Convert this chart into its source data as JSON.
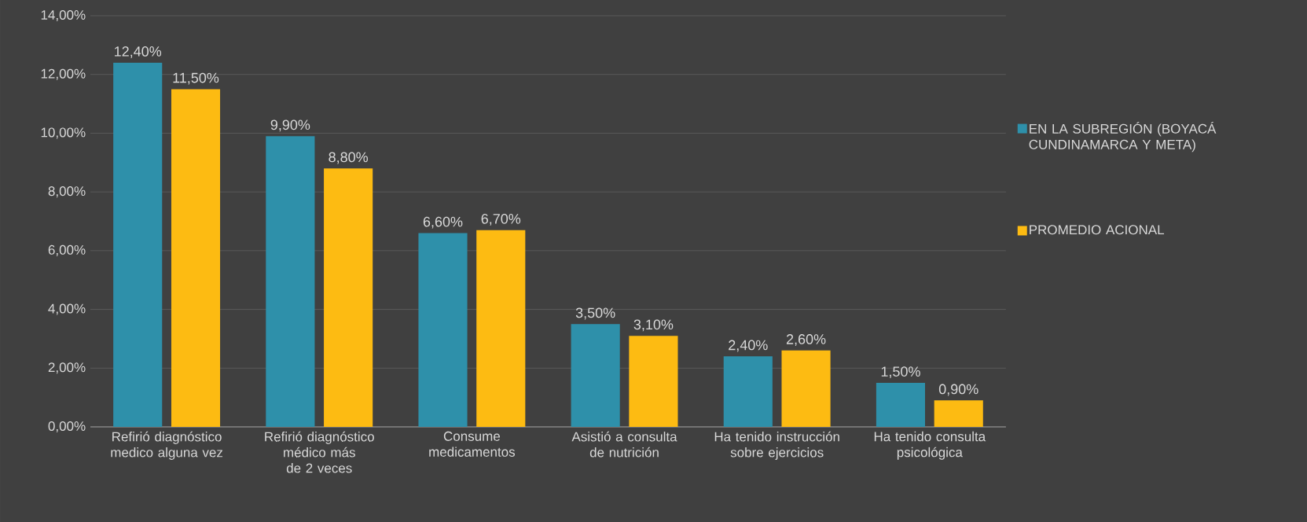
{
  "chart_data": {
    "type": "bar",
    "categories": [
      "Refirió diagnóstico medico alguna vez",
      "Refirió diagnóstico médico más de 2 veces",
      "Consume medicamentos",
      "Asistió a consulta de nutrición",
      "Ha tenido instrucción sobre ejercicios",
      "Ha tenido consulta psicológica"
    ],
    "series": [
      {
        "name": "EN LA SUBREGIÓN (BOYACÁ CUNDINAMARCA Y META)",
        "color": "#2e90aa",
        "values": [
          12.4,
          9.9,
          6.6,
          3.5,
          2.4,
          1.5
        ],
        "value_labels": [
          "12,40%",
          "9,90%",
          "6,60%",
          "3,50%",
          "2,40%",
          "1,50%"
        ]
      },
      {
        "name": "PROMEDIO ACIONAL",
        "color": "#fdbb12",
        "values": [
          11.5,
          8.8,
          6.7,
          3.1,
          2.6,
          0.9
        ],
        "value_labels": [
          "11,50%",
          "8,80%",
          "6,70%",
          "3,10%",
          "2,60%",
          "0,90%"
        ]
      }
    ],
    "ylim": [
      0,
      14
    ],
    "yticks": [
      {
        "value": 0,
        "label": "0,00%"
      },
      {
        "value": 2,
        "label": "2,00%"
      },
      {
        "value": 4,
        "label": "4,00%"
      },
      {
        "value": 6,
        "label": "6,00%"
      },
      {
        "value": 8,
        "label": "8,00%"
      },
      {
        "value": 10,
        "label": "10,00%"
      },
      {
        "value": 12,
        "label": "12,00%"
      },
      {
        "value": 14,
        "label": "14,00%"
      }
    ],
    "grid": "y",
    "legend": "right"
  }
}
